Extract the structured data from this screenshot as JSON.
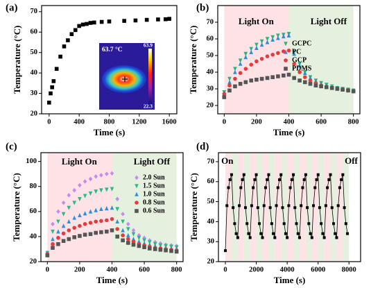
{
  "chart_data": [
    {
      "type": "scatter",
      "label": "(a)",
      "xlabel": "Time (s)",
      "ylabel": "Temperature (°C)",
      "xlim": [
        -100,
        1700
      ],
      "xticks": [
        0,
        400,
        800,
        1200,
        1600
      ],
      "ylim": [
        20,
        73
      ],
      "yticks": [
        20,
        30,
        40,
        50,
        60,
        70
      ],
      "x": [
        0,
        20,
        40,
        60,
        100,
        150,
        200,
        250,
        300,
        350,
        400,
        450,
        500,
        550,
        600,
        700,
        800,
        1000,
        1150,
        1300,
        1450,
        1550,
        1600
      ],
      "series": [
        {
          "name": null,
          "color": "#000000",
          "marker": "square",
          "values": [
            25.5,
            30,
            33,
            36,
            42,
            48,
            53,
            56,
            59,
            61,
            63,
            63.7,
            64,
            64.5,
            64.7,
            65,
            65.2,
            65.5,
            65.7,
            66,
            66.2,
            66.3,
            66.5
          ]
        }
      ],
      "inset": {
        "label": "63.7 °C",
        "scale_max": 63.9,
        "scale_min": 22.3
      }
    },
    {
      "type": "scatter",
      "label": "(b)",
      "xlabel": "Time (s)",
      "ylabel": "Temperature (°C)",
      "xlim": [
        -40,
        840
      ],
      "xticks": [
        0,
        200,
        400,
        600,
        800
      ],
      "ylim": [
        15,
        80
      ],
      "yticks": [
        20,
        30,
        40,
        50,
        60,
        70
      ],
      "shading": [
        {
          "x": [
            0,
            400
          ],
          "color": "#fde3e6"
        },
        {
          "x": [
            400,
            800
          ],
          "color": "#e5f1de"
        }
      ],
      "annotations": [
        "Light On",
        "Light Off"
      ],
      "x": [
        0,
        33,
        67,
        100,
        133,
        167,
        200,
        233,
        267,
        300,
        333,
        367,
        400,
        433,
        467,
        500,
        533,
        567,
        600,
        633,
        667,
        700,
        733,
        767,
        800
      ],
      "series": [
        {
          "name": "GCPC",
          "color": "#2db37a",
          "marker": "triangle-down",
          "values": [
            28,
            36,
            42,
            47,
            51,
            54,
            56.5,
            58.5,
            60,
            61,
            62,
            62.5,
            63,
            52,
            45,
            40,
            37,
            35,
            33.5,
            32.5,
            31.5,
            30.5,
            30,
            29.5,
            29
          ]
        },
        {
          "name": "PC",
          "color": "#2a8fd8",
          "marker": "triangle-up",
          "values": [
            27,
            34,
            40,
            45,
            49,
            52,
            54.5,
            56.5,
            58,
            59.5,
            60.5,
            61.5,
            62,
            51,
            44,
            39.5,
            36.5,
            34.5,
            33,
            32,
            31,
            30.5,
            30,
            29.5,
            29
          ]
        },
        {
          "name": "GCP",
          "color": "#e83a3a",
          "marker": "circle",
          "values": [
            27,
            32,
            36,
            39.5,
            42,
            44.5,
            46.5,
            48,
            49.5,
            50.5,
            51.5,
            52.5,
            53,
            45,
            40,
            37,
            35,
            33.5,
            32,
            31,
            30.5,
            30,
            29.5,
            29,
            28.5
          ]
        },
        {
          "name": "PDMS",
          "color": "#555555",
          "marker": "square",
          "values": [
            25,
            29,
            31.5,
            33,
            34,
            35,
            35.5,
            36,
            36.5,
            37,
            37.5,
            38,
            38.5,
            36.5,
            35,
            34,
            33,
            32,
            31.5,
            31,
            30.5,
            30,
            29.5,
            29,
            28.5
          ]
        }
      ]
    },
    {
      "type": "scatter",
      "label": "(c)",
      "xlabel": "Time (s)",
      "ylabel": "Temperature (°C)",
      "xlim": [
        -40,
        840
      ],
      "xticks": [
        0,
        200,
        400,
        600,
        800
      ],
      "ylim": [
        20,
        107
      ],
      "yticks": [
        20,
        40,
        60,
        80,
        100
      ],
      "shading": [
        {
          "x": [
            0,
            400
          ],
          "color": "#fde3e6"
        },
        {
          "x": [
            400,
            800
          ],
          "color": "#e5f1de"
        }
      ],
      "annotations": [
        "Light On",
        "Light Off"
      ],
      "x": [
        0,
        33,
        67,
        100,
        133,
        167,
        200,
        233,
        267,
        300,
        333,
        367,
        400,
        433,
        467,
        500,
        533,
        567,
        600,
        633,
        667,
        700,
        733,
        767,
        800
      ],
      "series": [
        {
          "name": "2.0 Sun",
          "color": "#c68af0",
          "marker": "diamond",
          "values": [
            27,
            50,
            60,
            67,
            73,
            77,
            81,
            84,
            86,
            88,
            89,
            90,
            90.5,
            70,
            58,
            50,
            45,
            41,
            39,
            37,
            35.5,
            34.5,
            33.5,
            33,
            32.5
          ]
        },
        {
          "name": "1.5 Sun",
          "color": "#27b98a",
          "marker": "triangle-down",
          "values": [
            27,
            44,
            52,
            58,
            63,
            67,
            70,
            72.5,
            74.5,
            76,
            77,
            77.5,
            78,
            62,
            52,
            46,
            42,
            39,
            37,
            35.5,
            34,
            33,
            32.5,
            32,
            31.5
          ]
        },
        {
          "name": "1.0 Sun",
          "color": "#2e8fe0",
          "marker": "triangle-up",
          "values": [
            27,
            38,
            44,
            48.5,
            52,
            55,
            57,
            58.5,
            60,
            61,
            62,
            62.5,
            63,
            52,
            45,
            41,
            38,
            36,
            34.5,
            33.5,
            32.5,
            31.5,
            31,
            30.5,
            30
          ]
        },
        {
          "name": "0.8 Sun",
          "color": "#e83a3a",
          "marker": "circle",
          "values": [
            26,
            34,
            39,
            42.5,
            45,
            47,
            48.5,
            50,
            51,
            52,
            52.5,
            53,
            54,
            46,
            41,
            38,
            36,
            34,
            33,
            32,
            31,
            30.5,
            30,
            29.5,
            29
          ]
        },
        {
          "name": "0.6 Sun",
          "color": "#555555",
          "marker": "square",
          "values": [
            25,
            31,
            34,
            36.5,
            38,
            39.5,
            40.5,
            41.5,
            42,
            43,
            43.5,
            44,
            45,
            40,
            37,
            35,
            33.5,
            32.5,
            31.5,
            30.5,
            30,
            29.5,
            29,
            28.5,
            28
          ]
        }
      ]
    },
    {
      "type": "line",
      "label": "(d)",
      "xlabel": "Time (s)",
      "ylabel": "Temperature (°C)",
      "xlim": [
        -450,
        8750
      ],
      "xticks": [
        0,
        2000,
        4000,
        6000,
        8000
      ],
      "ylim": [
        20,
        74.5
      ],
      "yticks": [
        20,
        30,
        40,
        50,
        60,
        70
      ],
      "shading": [
        {
          "x": [
            0,
            400
          ],
          "color": "#fde3e6"
        },
        {
          "x": [
            400,
            800
          ],
          "color": "#e5f1de"
        },
        {
          "x": [
            800,
            1200
          ],
          "color": "#fde3e6"
        },
        {
          "x": [
            1200,
            1600
          ],
          "color": "#e5f1de"
        },
        {
          "x": [
            1600,
            2000
          ],
          "color": "#fde3e6"
        },
        {
          "x": [
            2000,
            2400
          ],
          "color": "#e5f1de"
        },
        {
          "x": [
            2400,
            2800
          ],
          "color": "#fde3e6"
        },
        {
          "x": [
            2800,
            3200
          ],
          "color": "#e5f1de"
        },
        {
          "x": [
            3200,
            3600
          ],
          "color": "#fde3e6"
        },
        {
          "x": [
            3600,
            4000
          ],
          "color": "#e5f1de"
        },
        {
          "x": [
            4000,
            4400
          ],
          "color": "#fde3e6"
        },
        {
          "x": [
            4400,
            4800
          ],
          "color": "#e5f1de"
        },
        {
          "x": [
            4800,
            5200
          ],
          "color": "#fde3e6"
        },
        {
          "x": [
            5200,
            5600
          ],
          "color": "#e5f1de"
        },
        {
          "x": [
            5600,
            6000
          ],
          "color": "#fde3e6"
        },
        {
          "x": [
            6000,
            6400
          ],
          "color": "#e5f1de"
        },
        {
          "x": [
            6400,
            6800
          ],
          "color": "#fde3e6"
        },
        {
          "x": [
            6800,
            7200
          ],
          "color": "#e5f1de"
        },
        {
          "x": [
            7200,
            7600
          ],
          "color": "#fde3e6"
        },
        {
          "x": [
            7600,
            8000
          ],
          "color": "#e5f1de"
        }
      ],
      "annotations": [
        "On",
        "Off"
      ],
      "x": [
        0,
        100,
        200,
        300,
        400,
        500,
        600,
        700,
        800,
        900,
        1000,
        1100,
        1200,
        1300,
        1400,
        1500,
        1600,
        1700,
        1800,
        1900,
        2000,
        2100,
        2200,
        2300,
        2400,
        2500,
        2600,
        2700,
        2800,
        2900,
        3000,
        3100,
        3200,
        3300,
        3400,
        3500,
        3600,
        3700,
        3800,
        3900,
        4000,
        4100,
        4200,
        4300,
        4400,
        4500,
        4600,
        4700,
        4800,
        4900,
        5000,
        5100,
        5200,
        5300,
        5400,
        5500,
        5600,
        5700,
        5800,
        5900,
        6000,
        6100,
        6200,
        6300,
        6400,
        6500,
        6600,
        6700,
        6800,
        6900,
        7000,
        7100,
        7200,
        7300,
        7400,
        7500,
        7600,
        7700,
        7800,
        7900
      ],
      "series": [
        {
          "name": null,
          "color": "#000000",
          "marker": "square",
          "values": [
            25.5,
            48,
            57,
            61,
            63.5,
            47,
            39,
            34,
            32,
            48,
            57,
            61,
            63.5,
            47,
            39,
            34,
            32,
            48,
            57,
            61,
            63.5,
            47,
            39,
            34,
            32,
            48,
            57,
            61,
            63.5,
            47,
            39,
            34,
            32,
            48,
            57,
            61,
            63.5,
            47,
            39,
            34,
            32,
            48,
            57,
            61,
            63.5,
            47,
            39,
            34,
            32,
            48,
            57,
            61,
            63.5,
            47,
            39,
            34,
            32,
            48,
            57,
            61,
            63.5,
            47,
            39,
            34,
            32,
            48,
            57,
            61,
            63.5,
            47,
            39,
            34,
            32,
            48,
            57,
            61,
            63.5,
            47,
            39,
            34
          ]
        }
      ]
    }
  ]
}
